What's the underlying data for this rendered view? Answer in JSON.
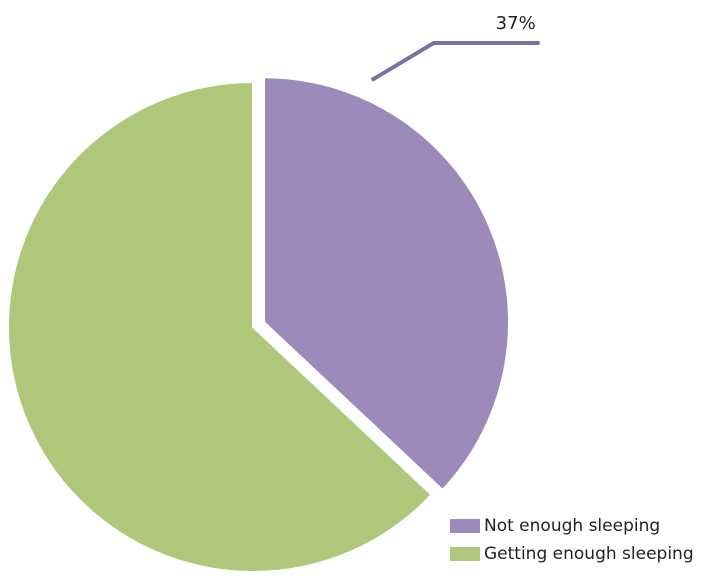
{
  "chart_data": {
    "type": "pie",
    "title": "",
    "categories": [
      "Not enough sleeping",
      "Getting enough sleeping"
    ],
    "values": [
      37,
      63
    ],
    "value_unit": "%",
    "data_labels": [
      "37%",
      ""
    ],
    "colors": [
      "#9b8aba",
      "#afc77a"
    ],
    "leader_color": "#7b6fa6",
    "legend_position": "bottom-right"
  }
}
